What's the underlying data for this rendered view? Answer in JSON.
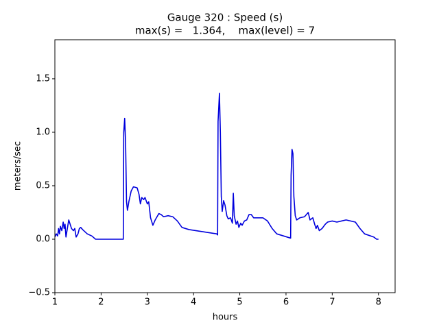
{
  "chart_data": {
    "type": "line",
    "title": [
      "Gauge 320 : Speed (s)",
      "max(s) =   1.364,    max(level) = 7"
    ],
    "xlabel": "hours",
    "ylabel": "meters/sec",
    "xlim": [
      1,
      8.36
    ],
    "ylim": [
      -0.5,
      1.865
    ],
    "xticks": [
      1,
      2,
      3,
      4,
      5,
      6,
      7,
      8
    ],
    "yticks": [
      {
        "value": -0.5,
        "label": "−0.5"
      },
      {
        "value": 0,
        "label": "0.0"
      },
      {
        "value": 0.5,
        "label": "0.5"
      },
      {
        "value": 1,
        "label": "1.0"
      },
      {
        "value": 1.5,
        "label": "1.5"
      }
    ],
    "grid": false,
    "series": [
      {
        "color": "#0000dd",
        "x": [
          1.0,
          1.03,
          1.06,
          1.08,
          1.1,
          1.12,
          1.15,
          1.18,
          1.2,
          1.22,
          1.24,
          1.27,
          1.3,
          1.33,
          1.36,
          1.4,
          1.43,
          1.46,
          1.5,
          1.53,
          1.56,
          1.6,
          1.7,
          1.8,
          1.88,
          2.0,
          2.3,
          2.48,
          2.49,
          2.51,
          2.53,
          2.55,
          2.57,
          2.6,
          2.65,
          2.7,
          2.78,
          2.82,
          2.85,
          2.88,
          2.92,
          2.95,
          3.0,
          3.03,
          3.07,
          3.12,
          3.17,
          3.25,
          3.3,
          3.35,
          3.45,
          3.55,
          3.65,
          3.75,
          3.9,
          4.2,
          4.5,
          4.52,
          4.53,
          4.56,
          4.58,
          4.6,
          4.62,
          4.65,
          4.68,
          4.72,
          4.75,
          4.8,
          4.84,
          4.86,
          4.88,
          4.92,
          4.95,
          4.98,
          5.02,
          5.05,
          5.1,
          5.15,
          5.2,
          5.25,
          5.3,
          5.5,
          5.6,
          5.7,
          5.8,
          5.95,
          6.1,
          6.11,
          6.13,
          6.15,
          6.17,
          6.2,
          6.23,
          6.3,
          6.4,
          6.48,
          6.52,
          6.58,
          6.62,
          6.65,
          6.68,
          6.72,
          6.78,
          6.85,
          6.9,
          7.0,
          7.1,
          7.2,
          7.3,
          7.5,
          7.6,
          7.7,
          7.9,
          7.96,
          8.0
        ],
        "values": [
          0.02,
          0.05,
          0.03,
          0.1,
          0.05,
          0.12,
          0.08,
          0.16,
          0.1,
          0.14,
          0.02,
          0.1,
          0.18,
          0.14,
          0.1,
          0.08,
          0.1,
          0.02,
          0.05,
          0.1,
          0.11,
          0.09,
          0.05,
          0.03,
          0.0,
          0.0,
          0.0,
          0.0,
          1.0,
          1.13,
          0.9,
          0.35,
          0.27,
          0.35,
          0.45,
          0.49,
          0.48,
          0.42,
          0.33,
          0.39,
          0.37,
          0.39,
          0.33,
          0.35,
          0.2,
          0.13,
          0.18,
          0.24,
          0.23,
          0.21,
          0.22,
          0.21,
          0.17,
          0.11,
          0.09,
          0.07,
          0.05,
          0.04,
          1.1,
          1.364,
          1.0,
          0.4,
          0.26,
          0.36,
          0.32,
          0.22,
          0.19,
          0.2,
          0.15,
          0.43,
          0.22,
          0.14,
          0.17,
          0.11,
          0.15,
          0.13,
          0.17,
          0.18,
          0.23,
          0.23,
          0.2,
          0.2,
          0.17,
          0.1,
          0.05,
          0.03,
          0.01,
          0.6,
          0.84,
          0.8,
          0.4,
          0.22,
          0.18,
          0.2,
          0.21,
          0.25,
          0.18,
          0.2,
          0.14,
          0.1,
          0.13,
          0.08,
          0.1,
          0.14,
          0.16,
          0.17,
          0.16,
          0.17,
          0.18,
          0.16,
          0.1,
          0.05,
          0.02,
          0.0,
          0.0
        ]
      }
    ]
  }
}
